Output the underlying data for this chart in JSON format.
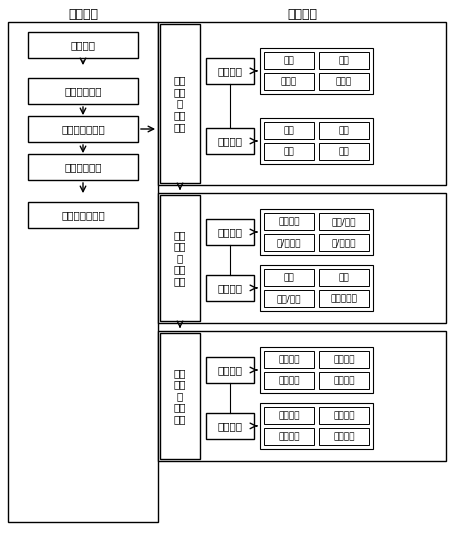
{
  "title_left": "流程框架",
  "title_right": "功能函数",
  "flow_boxes": [
    "数据输入",
    "确定对象类型",
    "应用算子、操作",
    "运算结果解析",
    "可视化或存数据"
  ],
  "section1_label": "空间\n构造\n与\n基本\n算子",
  "section1_sub1_label": "空间构造",
  "section1_sub1_items": [
    [
      "内积",
      "外积"
    ],
    [
      "几何积",
      "几何逆"
    ]
  ],
  "section1_sub2_label": "基本算子",
  "section1_sub2_items": [
    [
      "投影",
      "反射"
    ],
    [
      "旋转",
      "对偶"
    ]
  ],
  "section2_label": "几何\n算子\n与\n度量\n算子",
  "section2_sub1_label": "几何算子",
  "section2_sub1_items": [
    [
      "形体构建",
      "垂直/平行"
    ],
    [
      "内/外关系",
      "交/切关系"
    ]
  ],
  "section2_sub2_label": "度量算子",
  "section2_sub2_items": [
    [
      "距离",
      "角度"
    ],
    [
      "面积/体积",
      "共形逆变换"
    ]
  ],
  "section3_label": "分析\n算子\n与\n复合\n算法",
  "section3_sub1_label": "分析算子",
  "section3_sub1_items": [
    [
      "拓扑关系",
      "运动表达"
    ],
    [
      "形态分析",
      "插值分析"
    ]
  ],
  "section3_sub2_label": "复合算法",
  "section3_sub2_items": [
    [
      "几何分析",
      "网络分析"
    ],
    [
      "拓扑分析",
      "统计分析"
    ]
  ],
  "bg_color": "#ffffff",
  "font_size": 7.5,
  "title_font_size": 9
}
